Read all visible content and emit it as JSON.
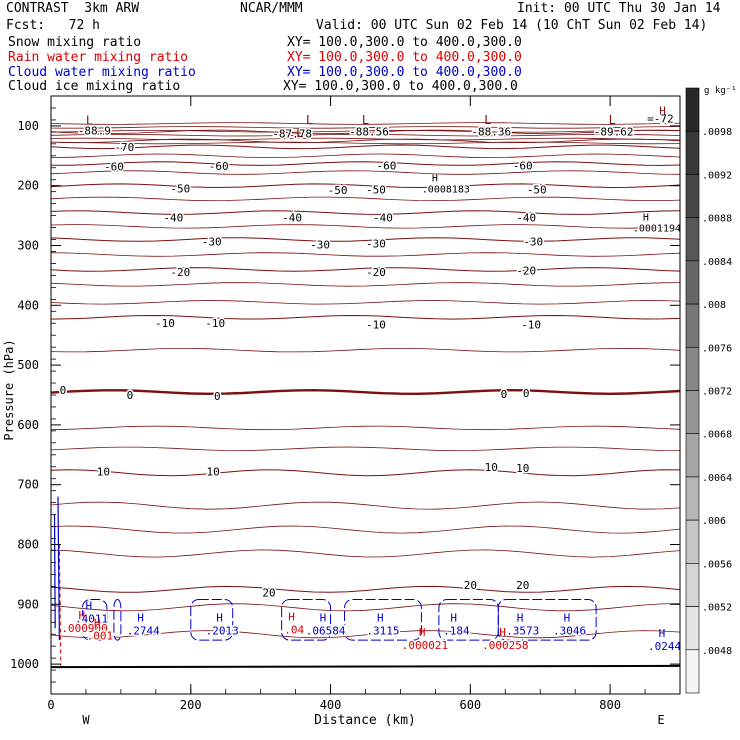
{
  "header": {
    "model": "CONTRAST  3km ARW",
    "org": "NCAR/MMM",
    "init": "Init: 00 UTC Thu 30 Jan 14",
    "fcst": "Fcst:   72 h",
    "valid": "Valid: 00 UTC Sun 02 Feb 14 (10 ChT Sun 02 Feb 14)"
  },
  "legend": [
    {
      "label": "Snow mixing ratio",
      "xy": "XY= 100.0,300.0 to 400.0,300.0",
      "color": "#000000"
    },
    {
      "label": "Rain water mixing ratio",
      "xy": "XY= 100.0,300.0 to 400.0,300.0",
      "color": "#dd0000"
    },
    {
      "label": "Cloud water mixing ratio",
      "xy": "XY= 100.0,300.0 to 400.0,300.0",
      "color": "#0000cc"
    },
    {
      "label": "Cloud ice mixing ratio",
      "xy": "XY= 100.0,300.0 to 400.0,300.0",
      "color": "#000000"
    }
  ],
  "colors": {
    "temperature": "#7a1010",
    "rain": "#dd0000",
    "cloud": "#0000cc",
    "axis": "#000000"
  },
  "chart_data": {
    "type": "contour",
    "xlabel": "Distance (km)",
    "ylabel": "Pressure (hPa)",
    "x_ticks": [
      0,
      200,
      400,
      600,
      800
    ],
    "xlim": [
      0,
      900
    ],
    "y_ticks": [
      100,
      200,
      300,
      400,
      500,
      600,
      700,
      800,
      900,
      1000
    ],
    "ylim": [
      50,
      1050
    ],
    "west_label": "W",
    "east_label": "E",
    "temperature_contours": [
      {
        "level": -70,
        "p": 135
      },
      {
        "level": -60,
        "p": 163
      },
      {
        "level": -50,
        "p": 200
      },
      {
        "level": -40,
        "p": 245
      },
      {
        "level": -30,
        "p": 290
      },
      {
        "level": -20,
        "p": 340
      },
      {
        "level": -10,
        "p": 420
      },
      {
        "level": 0,
        "p": 545,
        "bold": true
      },
      {
        "level": 10,
        "p": 680
      },
      {
        "level": 20,
        "p": 875
      }
    ],
    "temperature_labels": [
      {
        "text": "-70",
        "x": 105,
        "p": 135
      },
      {
        "text": "-60",
        "x": 90,
        "p": 168
      },
      {
        "text": "-60",
        "x": 240,
        "p": 167
      },
      {
        "text": "-60",
        "x": 480,
        "p": 166
      },
      {
        "text": "-60",
        "x": 675,
        "p": 166
      },
      {
        "text": "-50",
        "x": 185,
        "p": 205
      },
      {
        "text": "-50",
        "x": 410,
        "p": 207
      },
      {
        "text": "-50",
        "x": 465,
        "p": 206
      },
      {
        "text": "-50",
        "x": 695,
        "p": 206
      },
      {
        "text": "-40",
        "x": 175,
        "p": 253
      },
      {
        "text": "-40",
        "x": 345,
        "p": 253
      },
      {
        "text": "-40",
        "x": 475,
        "p": 253
      },
      {
        "text": "-40",
        "x": 680,
        "p": 253
      },
      {
        "text": "-30",
        "x": 230,
        "p": 293
      },
      {
        "text": "-30",
        "x": 385,
        "p": 298
      },
      {
        "text": "-30",
        "x": 465,
        "p": 297
      },
      {
        "text": "-30",
        "x": 690,
        "p": 293
      },
      {
        "text": "-20",
        "x": 185,
        "p": 344
      },
      {
        "text": "-20",
        "x": 465,
        "p": 344
      },
      {
        "text": "-20",
        "x": 680,
        "p": 342
      },
      {
        "text": "-10",
        "x": 163,
        "p": 430
      },
      {
        "text": "-10",
        "x": 235,
        "p": 430
      },
      {
        "text": "-10",
        "x": 465,
        "p": 432
      },
      {
        "text": "-10",
        "x": 687,
        "p": 432
      },
      {
        "text": "0",
        "x": 17,
        "p": 542
      },
      {
        "text": "0",
        "x": 113,
        "p": 550
      },
      {
        "text": "0",
        "x": 238,
        "p": 552
      },
      {
        "text": "0",
        "x": 648,
        "p": 548
      },
      {
        "text": "0",
        "x": 680,
        "p": 547
      },
      {
        "text": "10",
        "x": 75,
        "p": 678
      },
      {
        "text": "10",
        "x": 232,
        "p": 678
      },
      {
        "text": "10",
        "x": 630,
        "p": 670
      },
      {
        "text": "10",
        "x": 675,
        "p": 672
      },
      {
        "text": "20",
        "x": 312,
        "p": 880
      },
      {
        "text": "20",
        "x": 600,
        "p": 868
      },
      {
        "text": "20",
        "x": 675,
        "p": 868
      }
    ],
    "temperature_min_labels": [
      {
        "text": "-88.9",
        "x": 62,
        "p": 108
      },
      {
        "text": "-87.78",
        "x": 345,
        "p": 113
      },
      {
        "text": "-88.56",
        "x": 455,
        "p": 109
      },
      {
        "text": "-88.36",
        "x": 630,
        "p": 109
      },
      {
        "text": "-89.62",
        "x": 805,
        "p": 109
      },
      {
        "text": "=-72",
        "x": 872,
        "p": 88
      }
    ],
    "low_markers": [
      {
        "x": 55,
        "p": 91
      },
      {
        "x": 370,
        "p": 90
      },
      {
        "x": 450,
        "p": 90
      },
      {
        "x": 625,
        "p": 90
      },
      {
        "x": 803,
        "p": 90
      },
      {
        "x": 356,
        "p": 112
      }
    ],
    "high_markers": [
      {
        "x": 875,
        "p": 74
      }
    ],
    "snow_maxima": [
      {
        "text": ".0008183",
        "x": 565,
        "p": 200
      },
      {
        "text": ".0001194",
        "x": 867,
        "p": 265
      }
    ],
    "cloud_maxima": [
      {
        "text": ".4011",
        "x": 58,
        "p": 922
      },
      {
        "text": ".2744",
        "x": 132,
        "p": 942
      },
      {
        "text": ".2013",
        "x": 245,
        "p": 942
      },
      {
        "text": ".06584",
        "x": 393,
        "p": 942
      },
      {
        "text": ".3115",
        "x": 475,
        "p": 942
      },
      {
        "text": ".184",
        "x": 580,
        "p": 942
      },
      {
        "text": ".3573",
        "x": 675,
        "p": 942
      },
      {
        "text": ".3046",
        "x": 742,
        "p": 942
      },
      {
        "text": ".0244",
        "x": 878,
        "p": 968
      }
    ],
    "rain_maxima": [
      {
        "text": ".000900",
        "x": 48,
        "p": 940
      },
      {
        "text": ".001",
        "x": 70,
        "p": 952
      },
      {
        "text": ".04",
        "x": 348,
        "p": 942
      },
      {
        "text": ".000021",
        "x": 535,
        "p": 968
      },
      {
        "text": ".000258",
        "x": 650,
        "p": 968
      }
    ],
    "colorbar": {
      "units": "g kg⁻¹",
      "ticks": [
        ".0098",
        ".0092",
        ".0088",
        ".0084",
        ".008",
        ".0076",
        ".0072",
        ".0068",
        ".0064",
        ".006",
        ".0056",
        ".0052",
        ".0048"
      ]
    }
  }
}
